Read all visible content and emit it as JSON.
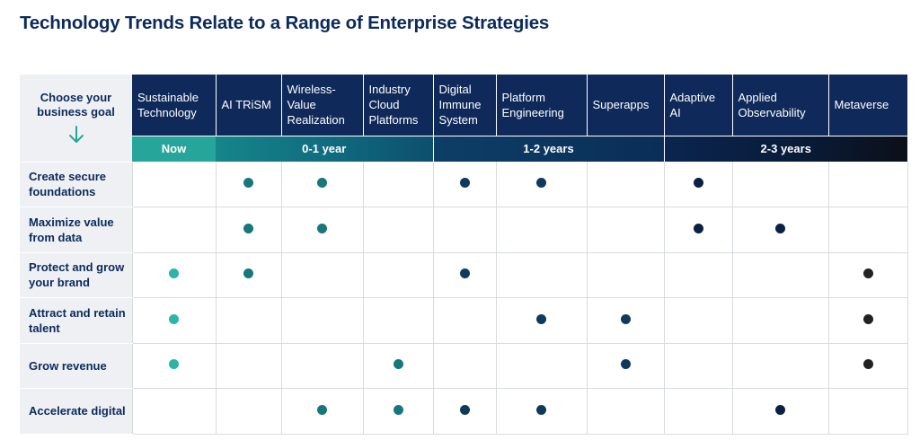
{
  "title": "Technology Trends Relate to a Range of Enterprise Strategies",
  "corner": {
    "label": "Choose your business goal",
    "icon": "arrow-down-icon"
  },
  "columns": [
    "Sustainable Technology",
    "AI TRiSM",
    "Wireless-Value Realization",
    "Industry Cloud Platforms",
    "Digital Immune System",
    "Platform Engineering",
    "Superapps",
    "Adaptive AI",
    "Applied Observability",
    "Metaverse"
  ],
  "timeline": [
    {
      "label": "Now",
      "span": 1
    },
    {
      "label": "0-1 year",
      "span": 3
    },
    {
      "label": "1-2 years",
      "span": 3
    },
    {
      "label": "2-3 years",
      "span": 3
    }
  ],
  "colors": {
    "now": "#2bb5a6",
    "year01": "#16777c",
    "year12": "#0f3a5c",
    "year23": "#0a2146",
    "metaverse": "#222222"
  },
  "rows": [
    {
      "label": "Create secure foundations",
      "cells": [
        0,
        1,
        1,
        0,
        1,
        1,
        0,
        1,
        0,
        0
      ]
    },
    {
      "label": "Maximize value from data",
      "cells": [
        0,
        1,
        1,
        0,
        0,
        0,
        0,
        1,
        1,
        0
      ]
    },
    {
      "label": "Protect and grow your brand",
      "cells": [
        1,
        1,
        0,
        0,
        1,
        0,
        0,
        0,
        0,
        1
      ]
    },
    {
      "label": "Attract and retain talent",
      "cells": [
        1,
        0,
        0,
        0,
        0,
        1,
        1,
        0,
        0,
        1
      ]
    },
    {
      "label": "Grow revenue",
      "cells": [
        1,
        0,
        0,
        1,
        0,
        0,
        1,
        0,
        0,
        1
      ]
    },
    {
      "label": "Accelerate digital",
      "cells": [
        0,
        0,
        1,
        1,
        1,
        1,
        0,
        0,
        1,
        0
      ]
    }
  ]
}
